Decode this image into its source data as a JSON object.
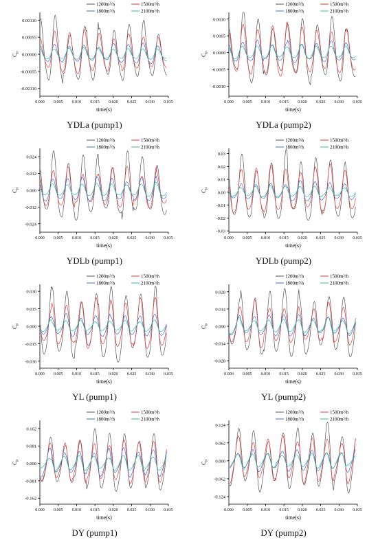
{
  "legend_labels": [
    "1200m³/h",
    "1500m³/h",
    "1800m³/h",
    "2100m³/h"
  ],
  "colors": {
    "1200": "#555555",
    "1500": "#e8383b",
    "1800": "#3a6fd8",
    "2100": "#2fbf8f"
  },
  "chart_data": [
    {
      "type": "line",
      "caption": "YDLa (pump1)",
      "xlabel": "time(s)",
      "ylabel": "C",
      "ylabel_sub": "p",
      "x_ticks": [
        "0.000",
        "0.005",
        "0.010",
        "0.015",
        "0.020",
        "0.025",
        "0.030",
        "0.035"
      ],
      "xlim": [
        0,
        0.035
      ],
      "y_ticks": [
        "-0.00110",
        "-0.00055",
        "0.00000",
        "0.00055",
        "0.00110"
      ],
      "y_tick_values": [
        -0.0011,
        -0.00055,
        0,
        0.00055,
        0.0011
      ],
      "ylim": [
        -0.00135,
        0.00135
      ],
      "series": [
        {
          "name": "1200m³/h",
          "phase": 0.0,
          "x": [
            0,
            0.0025,
            0.005,
            0.0075,
            0.01,
            0.0125,
            0.015,
            0.0175,
            0.02,
            0.0225,
            0.025,
            0.0275,
            0.03,
            0.0325,
            0.034
          ],
          "y": [
            -0.0007,
            -0.00085,
            -0.0007,
            -0.00075,
            -0.0009,
            -0.0007,
            -0.0006,
            -0.0005,
            -0.00055,
            -0.0005,
            -0.0006,
            -0.0005,
            -0.0004,
            -0.00075,
            -0.0001
          ],
          "peaks": [
            0.0001,
            0.0005,
            0.00045,
            0.0005,
            0.0004,
            0.0006,
            0.0003,
            0.0011,
            0.0004
          ]
        },
        {
          "name": "1500m³/h",
          "phase": 0.0,
          "x": [
            0,
            0.035
          ],
          "y": [
            -0.0006,
            -0.0006
          ],
          "peaks": [
            0.00055,
            0.00045,
            0.00055,
            0.0005,
            0.00065,
            0.00075,
            0.0007,
            0.0007,
            0.00055
          ]
        },
        {
          "name": "1800m³/h",
          "phase": 0.0,
          "x": [
            0,
            0.035
          ],
          "y": [
            -0.0003,
            -0.0003
          ],
          "peaks": [
            0.0003,
            0.0003,
            0.0003,
            0.0003,
            0.00025,
            0.00025,
            0.00035,
            0.0003,
            0.0003
          ]
        },
        {
          "name": "2100m³/h",
          "phase": 0.0,
          "x": [
            0,
            0.035
          ],
          "y": [
            -0.0002,
            -0.0002
          ],
          "peaks": [
            0.0002,
            0.0002,
            0.00015,
            0.0002,
            0.00015,
            0.0002,
            0.0002,
            0.0002,
            0.0002
          ]
        }
      ]
    },
    {
      "type": "line",
      "caption": "YDLa (pump2)",
      "xlabel": "time(s)",
      "ylabel": "C",
      "ylabel_sub": "p",
      "x_ticks": [
        "0.000",
        "0.005",
        "0.010",
        "0.015",
        "0.020",
        "0.025",
        "0.030",
        "0.035"
      ],
      "xlim": [
        0,
        0.035
      ],
      "y_ticks": [
        "-0.0010",
        "-0.0005",
        "0.0000",
        "0.0005",
        "0.0010"
      ],
      "y_tick_values": [
        -0.001,
        -0.0005,
        0,
        0.0005,
        0.001
      ],
      "ylim": [
        -0.0013,
        0.0012
      ],
      "series": [
        {
          "name": "1200m³/h",
          "amp": 0.00095
        },
        {
          "name": "1500m³/h",
          "amp": 0.00075
        },
        {
          "name": "1800m³/h",
          "amp": 0.0003
        },
        {
          "name": "2100m³/h",
          "amp": 0.0002
        }
      ]
    },
    {
      "type": "line",
      "caption": "YDLb (pump1)",
      "xlabel": "time(s)",
      "ylabel": "C",
      "ylabel_sub": "p",
      "x_ticks": [
        "0.000",
        "0.005",
        "0.010",
        "0.015",
        "0.020",
        "0.025",
        "0.030",
        "0.035"
      ],
      "xlim": [
        0,
        0.035
      ],
      "y_ticks": [
        "-0.024",
        "-0.012",
        "0.000",
        "0.012",
        "0.024"
      ],
      "y_tick_values": [
        -0.024,
        -0.012,
        0,
        0.012,
        0.024
      ],
      "ylim": [
        -0.03,
        0.03
      ],
      "series": [
        {
          "name": "1200m³/h",
          "amp": 0.022
        },
        {
          "name": "1500m³/h",
          "amp": 0.013
        },
        {
          "name": "1800m³/h",
          "amp": 0.008
        },
        {
          "name": "2100m³/h",
          "amp": 0.005
        }
      ]
    },
    {
      "type": "line",
      "caption": "YDLb (pump2)",
      "xlabel": "time(s)",
      "ylabel": "C",
      "ylabel_sub": "p",
      "x_ticks": [
        "0.000",
        "0.005",
        "0.010",
        "0.015",
        "0.020",
        "0.025",
        "0.030",
        "0.035"
      ],
      "xlim": [
        0,
        0.035
      ],
      "y_ticks": [
        "-0.03",
        "-0.02",
        "-0.01",
        "0.00",
        "0.01",
        "0.02",
        "0.03"
      ],
      "y_tick_values": [
        -0.03,
        -0.02,
        -0.01,
        0,
        0.01,
        0.02,
        0.03
      ],
      "ylim": [
        -0.031,
        0.034
      ],
      "series": [
        {
          "name": "1200m³/h",
          "amp": 0.024
        },
        {
          "name": "1500m³/h",
          "amp": 0.017
        },
        {
          "name": "1800m³/h",
          "amp": 0.007
        },
        {
          "name": "2100m³/h",
          "amp": 0.004
        }
      ]
    },
    {
      "type": "line",
      "caption": "YL (pump1)",
      "xlabel": "time(s)",
      "ylabel": "C",
      "ylabel_sub": "p",
      "x_ticks": [
        "0.000",
        "0.005",
        "0.010",
        "0.015",
        "0.020",
        "0.025",
        "0.030",
        "0.035"
      ],
      "xlim": [
        0,
        0.035
      ],
      "y_ticks": [
        "-0.030",
        "-0.015",
        "0.000",
        "0.015",
        "0.030"
      ],
      "y_tick_values": [
        -0.03,
        -0.015,
        0,
        0.015,
        0.03
      ],
      "ylim": [
        -0.036,
        0.036
      ],
      "series": [
        {
          "name": "1200m³/h",
          "amp": 0.028
        },
        {
          "name": "1500m³/h",
          "amp": 0.02
        },
        {
          "name": "1800m³/h",
          "amp": 0.009
        },
        {
          "name": "2100m³/h",
          "amp": 0.005
        }
      ]
    },
    {
      "type": "line",
      "caption": "YL (pump2)",
      "xlabel": "time(s)",
      "ylabel": "C",
      "ylabel_sub": "p",
      "x_ticks": [
        "0.000",
        "0.005",
        "0.010",
        "0.015",
        "0.020",
        "0.025",
        "0.030",
        "0.035"
      ],
      "xlim": [
        0,
        0.035
      ],
      "y_ticks": [
        "-0.028",
        "-0.014",
        "0.000",
        "0.014",
        "0.028"
      ],
      "y_tick_values": [
        -0.028,
        -0.014,
        0,
        0.014,
        0.028
      ],
      "ylim": [
        -0.034,
        0.034
      ],
      "series": [
        {
          "name": "1200m³/h",
          "amp": 0.026
        },
        {
          "name": "1500m³/h",
          "amp": 0.017
        },
        {
          "name": "1800m³/h",
          "amp": 0.008
        },
        {
          "name": "2100m³/h",
          "amp": 0.006
        }
      ]
    },
    {
      "type": "line",
      "caption": "DY (pump1)",
      "xlabel": "time(s)",
      "ylabel": "C",
      "ylabel_sub": "p",
      "x_ticks": [
        "0.000",
        "0.005",
        "0.010",
        "0.015",
        "0.020",
        "0.025",
        "0.030",
        "0.035"
      ],
      "xlim": [
        0,
        0.035
      ],
      "y_ticks": [
        "-0.162",
        "-0.081",
        "0.000",
        "0.081",
        "0.162"
      ],
      "y_tick_values": [
        -0.162,
        -0.081,
        0,
        0.081,
        0.162
      ],
      "ylim": [
        -0.19,
        0.2
      ],
      "series": [
        {
          "name": "1200m³/h",
          "amp": 0.12
        },
        {
          "name": "1500m³/h",
          "amp": 0.09
        },
        {
          "name": "1800m³/h",
          "amp": 0.06
        },
        {
          "name": "2100m³/h",
          "amp": 0.03
        }
      ]
    },
    {
      "type": "line",
      "caption": "DY (pump2)",
      "xlabel": "time(s)",
      "ylabel": "C",
      "ylabel_sub": "p",
      "x_ticks": [
        "0.000",
        "0.005",
        "0.010",
        "0.015",
        "0.020",
        "0.025",
        "0.030",
        "0.035"
      ],
      "xlim": [
        0,
        0.035
      ],
      "y_ticks": [
        "-0.124",
        "-0.062",
        "0.000",
        "0.062",
        "0.124"
      ],
      "y_tick_values": [
        -0.124,
        -0.062,
        0,
        0.062,
        0.124
      ],
      "ylim": [
        -0.15,
        0.14
      ],
      "series": [
        {
          "name": "1200m³/h",
          "amp": 0.1
        },
        {
          "name": "1500m³/h",
          "amp": 0.075
        },
        {
          "name": "1800m³/h",
          "amp": 0.035
        },
        {
          "name": "2100m³/h",
          "amp": 0.025
        }
      ]
    }
  ]
}
